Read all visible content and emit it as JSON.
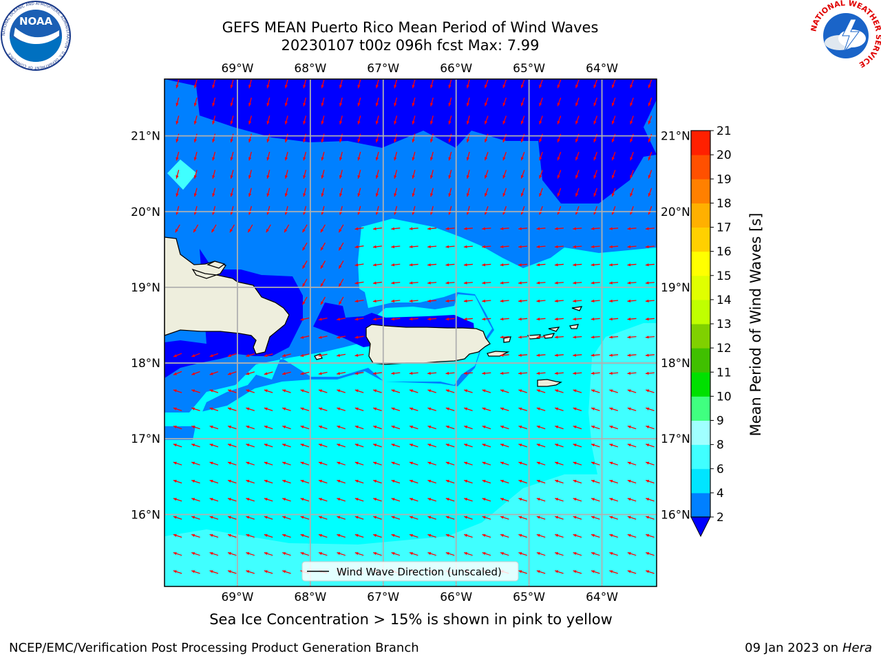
{
  "header": {
    "title_line1": "GEFS MEAN Puerto Rico Mean Period of Wind Waves",
    "title_line2": "20230107 t00z 096h fcst   Max: 7.99"
  },
  "map": {
    "lon_labels": [
      "69°W",
      "68°W",
      "67°W",
      "66°W",
      "65°W",
      "64°W"
    ],
    "lat_labels": [
      "21°N",
      "20°N",
      "19°N",
      "18°N",
      "17°N",
      "16°N"
    ],
    "lon_values": [
      -69,
      -68,
      -67,
      -66,
      -65,
      -64
    ],
    "lat_values": [
      21,
      20,
      19,
      18,
      17,
      16
    ],
    "extent": {
      "lon_min": -70,
      "lon_max": -63.25,
      "lat_min": 15.05,
      "lat_max": 21.75
    },
    "legend_label": "Wind Wave Direction (unscaled)",
    "arrow_color": "#ff0000",
    "land_color": "#eeeedd"
  },
  "colorbar": {
    "label": "Mean Period of Wind Waves [s]",
    "levels": [
      "2",
      "4",
      "6",
      "8",
      "9",
      "10",
      "11",
      "12",
      "13",
      "14",
      "15",
      "16",
      "17",
      "18",
      "19",
      "20",
      "21"
    ],
    "colors": [
      "#0080ff",
      "#00e5ff",
      "#40ffff",
      "#a0ffff",
      "#40ff80",
      "#00e000",
      "#40c000",
      "#80d000",
      "#c0ff00",
      "#e0ff00",
      "#ffff00",
      "#ffd000",
      "#ffb000",
      "#ff8000",
      "#ff5000",
      "#ff2000"
    ],
    "under_color": "#0000ff"
  },
  "fill_colors": {
    "deep": "#0000ff",
    "blue": "#0080ff",
    "cyan": "#00ffff",
    "light": "#40ffff"
  },
  "note": "Sea Ice Concentration > 15% is shown in pink to yellow",
  "footer": {
    "left": "NCEP/EMC/Verification Post Processing Product Generation Branch",
    "date": "09 Jan 2023 on ",
    "machine": "Hera"
  },
  "logos": {
    "noaa_text": "NOAA",
    "noaa_ring": "NATIONAL OCEANIC AND ATMOSPHERIC ADMINISTRATION · U.S. DEPARTMENT OF COMMERCE",
    "nws_ring": "NATIONAL WEATHER SERVICE"
  }
}
